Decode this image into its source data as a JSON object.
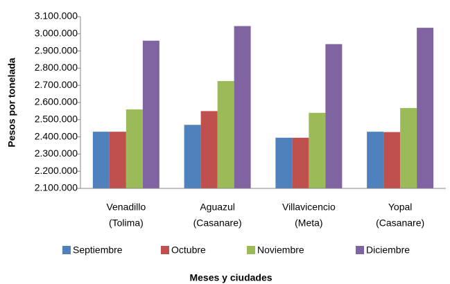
{
  "chart_data": {
    "type": "bar",
    "categories": [
      [
        "Venadillo",
        "(Tolima)"
      ],
      [
        "Aguazul",
        "(Casanare)"
      ],
      [
        "Villavicencio",
        "(Meta)"
      ],
      [
        "Yopal",
        "(Casanare)"
      ]
    ],
    "series": [
      {
        "name": "Septiembre",
        "color": "#4f81bd",
        "values": [
          2430000,
          2470000,
          2395000,
          2430000
        ]
      },
      {
        "name": "Octubre",
        "color": "#c0504d",
        "values": [
          2430000,
          2550000,
          2395000,
          2428000
        ]
      },
      {
        "name": "Noviembre",
        "color": "#9bbb59",
        "values": [
          2560000,
          2725000,
          2540000,
          2568000
        ]
      },
      {
        "name": "Diciembre",
        "color": "#8064a2",
        "values": [
          2960000,
          3045000,
          2940000,
          3035000
        ]
      }
    ],
    "ylim": [
      2100000,
      3100000
    ],
    "yticks": [
      {
        "value": 2100000,
        "label": "2.100.000"
      },
      {
        "value": 2200000,
        "label": "2.200.000"
      },
      {
        "value": 2300000,
        "label": "2.300.000"
      },
      {
        "value": 2400000,
        "label": "2.400.000"
      },
      {
        "value": 2500000,
        "label": "2.500.000"
      },
      {
        "value": 2600000,
        "label": "2.600.000"
      },
      {
        "value": 2700000,
        "label": "2.700.000"
      },
      {
        "value": 2800000,
        "label": "2.800.000"
      },
      {
        "value": 2900000,
        "label": "2.900.000"
      },
      {
        "value": 3000000,
        "label": "3.000.000"
      },
      {
        "value": 3100000,
        "label": "3.100.000"
      }
    ],
    "ylabel": "Pesos por tonelada",
    "xlabel": "Meses y ciudades",
    "legend": "bottom"
  }
}
